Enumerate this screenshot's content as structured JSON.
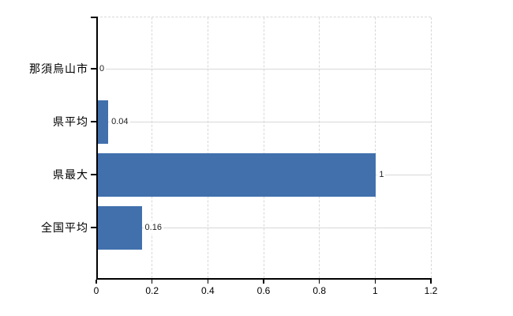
{
  "chart_data": {
    "type": "bar",
    "orientation": "horizontal",
    "title": "",
    "xlabel": "",
    "ylabel": "",
    "categories": [
      "那須烏山市",
      "県平均",
      "県最大",
      "全国平均"
    ],
    "values": [
      0,
      0.04,
      1,
      0.16
    ],
    "value_labels": [
      "0",
      "0.04",
      "1",
      "0.16"
    ],
    "xlim": [
      0,
      1.2
    ],
    "x_ticks": [
      0,
      0.2,
      0.4,
      0.6,
      0.8,
      1,
      1.2
    ],
    "x_tick_labels": [
      "0",
      "0.2",
      "0.4",
      "0.6",
      "0.8",
      "1",
      "1.2"
    ],
    "grid": true,
    "legend": false,
    "colors": {
      "bar": "#4170ac",
      "gridline": "#d8d8d8",
      "axis": "#000000",
      "tick_label": "#000000",
      "category_label": "#000000",
      "value_label": "#222222",
      "background": "#ffffff"
    }
  }
}
